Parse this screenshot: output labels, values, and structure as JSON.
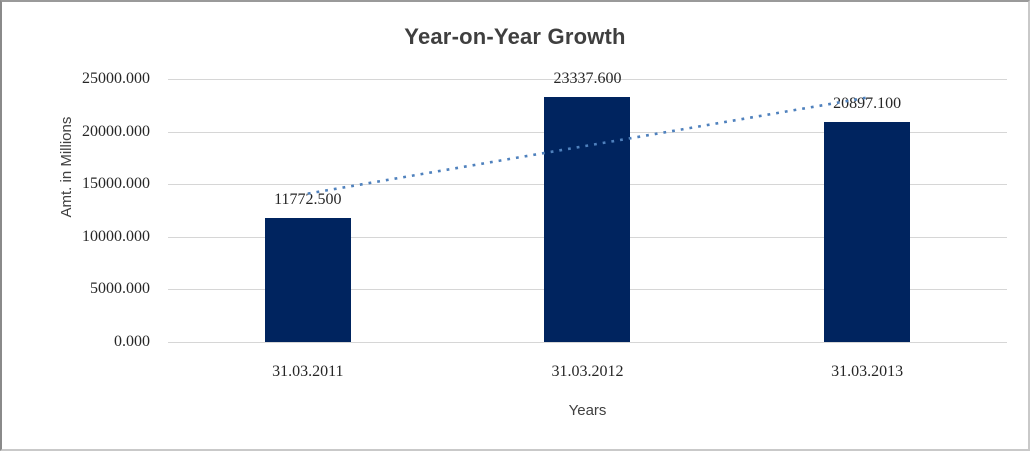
{
  "chart_data": {
    "type": "bar",
    "title": "Year-on-Year Growth",
    "xlabel": "Years",
    "ylabel": "Amt. in Millions",
    "categories": [
      "31.03.2011",
      "31.03.2012",
      "31.03.2013"
    ],
    "values": [
      11772.5,
      23337.6,
      20897.1
    ],
    "data_labels": [
      "11772.500",
      "23337.600",
      "20897.100"
    ],
    "ylim": [
      0,
      25000
    ],
    "ytick_step": 5000,
    "ytick_labels_top_to_bottom": [
      "25000.000",
      "20000.000",
      "15000.000",
      "10000.000",
      "5000.000",
      "0.000"
    ],
    "grid": "horizontal",
    "legend": "none",
    "trendline": {
      "type": "linear",
      "style": "dotted",
      "spans": "first-category-center-to-last-category-center"
    },
    "colors": {
      "bar": "#00245f",
      "trendline": "#4f81bd",
      "gridline": "#d6d6d6",
      "title_text": "#3f3f3f",
      "axis_title_text": "#404040",
      "tick_text": "#262626"
    }
  }
}
